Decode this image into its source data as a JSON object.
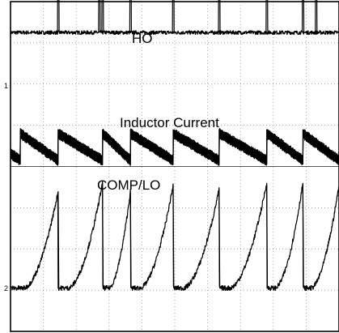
{
  "chart_data": {
    "type": "line",
    "title": "",
    "xlabel": "",
    "ylabel": "",
    "grid": true,
    "grid_divisions": {
      "horizontal": 10,
      "vertical": 8
    },
    "legend": "none",
    "x_unit": "time (graticule divisions)",
    "xlim": [
      0,
      10
    ],
    "ylim": [
      0,
      8
    ],
    "series": [
      {
        "name": "HO",
        "baseline_div": 7.25,
        "pulse_height_div": 1.9,
        "pulse_x_div": [
          1.45,
          2.7,
          2.8,
          3.65,
          4.95,
          6.35,
          7.8,
          8.9,
          9.3
        ]
      },
      {
        "name": "Inductor Current",
        "ripple_peak_div": 4.8,
        "ripple_valley_div": 4.15,
        "reset_x_div": [
          0.3,
          1.45,
          2.8,
          3.65,
          4.95,
          6.35,
          7.8,
          8.9,
          10.0
        ]
      },
      {
        "name": "COMP/LO",
        "baseline_div": 1.05,
        "peak_div": [
          3.4,
          3.6,
          3.4,
          3.55,
          3.45,
          3.6,
          3.6,
          3.55,
          3.4
        ],
        "reset_x_div": [
          1.45,
          2.8,
          3.65,
          4.95,
          6.35,
          7.8,
          8.9,
          10.0
        ]
      }
    ],
    "markers": [
      "1",
      "2"
    ]
  }
}
